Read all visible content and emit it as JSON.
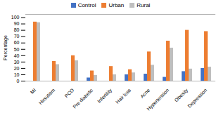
{
  "chart_data": {
    "type": "bar",
    "categories": [
      "MI",
      "Hirsutism",
      "PCO",
      "Pre diabetic",
      "Infertility",
      "Hair loss",
      "Acne",
      "Hypertension",
      "Obesity",
      "Depression"
    ],
    "series": [
      {
        "name": "Control",
        "color": "#4472C4",
        "values": [
          0,
          0,
          0,
          5,
          0,
          10,
          11,
          6,
          15,
          20
        ]
      },
      {
        "name": "Urban",
        "color": "#ED7D31",
        "values": [
          93,
          31,
          40,
          16,
          23,
          18,
          46,
          63,
          80,
          78
        ]
      },
      {
        "name": "Rural",
        "color": "#BFBFBF",
        "values": [
          92,
          26,
          32,
          9,
          10,
          13,
          25,
          52,
          19,
          22
        ]
      }
    ],
    "ylabel": "Percentage",
    "ylim": [
      0,
      105
    ],
    "yticks": [
      0,
      10,
      20,
      30,
      40,
      50,
      60,
      70,
      80,
      90,
      100
    ],
    "grid": false,
    "legend": "top"
  }
}
